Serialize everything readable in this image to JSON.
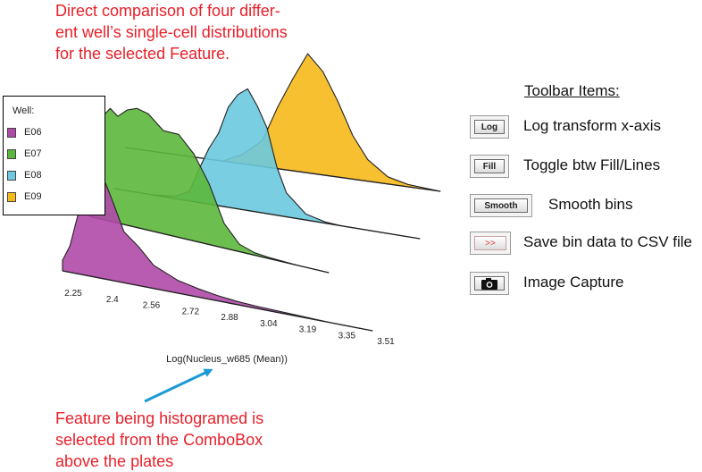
{
  "annotations": {
    "top": [
      "Direct comparison of four differ-",
      "ent well’s single-cell distributions",
      "for the selected Feature."
    ],
    "bottom": [
      "Feature being histogramed is",
      "selected from the ComboBox",
      "above the plates"
    ]
  },
  "legend": {
    "title": "Well:",
    "items": [
      {
        "label": "E06",
        "color": "#b04aa8"
      },
      {
        "label": "E07",
        "color": "#5cb83c"
      },
      {
        "label": "E08",
        "color": "#6cc9df"
      },
      {
        "label": "E09",
        "color": "#f5b91a"
      }
    ]
  },
  "chart_data": {
    "type": "area",
    "xlabel": "Log(Nucleus_w685 (Mean))",
    "x_ticks": [
      "2.25",
      "2.4",
      "2.56",
      "2.72",
      "2.88",
      "3.04",
      "3.19",
      "3.35",
      "3.51"
    ],
    "xlim": [
      2.25,
      3.51
    ],
    "series": [
      {
        "name": "E06",
        "color": "#b04aa8",
        "x": [
          2.25,
          2.28,
          2.31,
          2.34,
          2.37,
          2.4,
          2.43,
          2.46,
          2.5,
          2.56,
          2.62,
          2.72,
          2.8,
          2.88,
          2.96,
          3.04,
          3.19,
          3.35,
          3.51
        ],
        "y": [
          0.1,
          0.25,
          0.55,
          0.78,
          0.93,
          1.0,
          0.9,
          0.7,
          0.5,
          0.35,
          0.22,
          0.12,
          0.08,
          0.05,
          0.03,
          0.02,
          0.01,
          0.0,
          0.0
        ]
      },
      {
        "name": "E07",
        "color": "#5cb83c",
        "x": [
          2.25,
          2.28,
          2.32,
          2.36,
          2.4,
          2.45,
          2.5,
          2.56,
          2.64,
          2.72,
          2.8,
          2.88,
          2.96,
          3.04,
          3.12,
          3.19,
          3.35,
          3.51
        ],
        "y": [
          0.0,
          0.6,
          0.85,
          0.9,
          0.88,
          0.92,
          0.98,
          0.93,
          0.85,
          0.82,
          0.72,
          0.48,
          0.2,
          0.06,
          0.02,
          0.01,
          0.0,
          0.0
        ]
      },
      {
        "name": "E08",
        "color": "#6cc9df",
        "x": [
          2.25,
          2.4,
          2.5,
          2.56,
          2.6,
          2.64,
          2.68,
          2.72,
          2.76,
          2.8,
          2.84,
          2.88,
          2.92,
          2.96,
          3.04,
          3.12,
          3.19,
          3.35,
          3.51
        ],
        "y": [
          0.0,
          0.0,
          0.02,
          0.08,
          0.28,
          0.45,
          0.62,
          0.82,
          0.97,
          1.0,
          0.9,
          0.7,
          0.42,
          0.2,
          0.05,
          0.01,
          0.0,
          0.0,
          0.0
        ]
      },
      {
        "name": "E09",
        "color": "#f5b91a",
        "x": [
          2.25,
          2.5,
          2.64,
          2.72,
          2.8,
          2.86,
          2.92,
          2.98,
          3.04,
          3.1,
          3.16,
          3.22,
          3.3,
          3.38,
          3.51
        ],
        "y": [
          0.0,
          0.0,
          0.0,
          0.08,
          0.22,
          0.5,
          0.78,
          0.98,
          0.88,
          0.62,
          0.38,
          0.18,
          0.06,
          0.02,
          0.0
        ]
      }
    ],
    "legend_position": "left",
    "grid": false
  },
  "toolbar": {
    "heading": "Toolbar Items:",
    "items": [
      {
        "button": "Log",
        "icon": "log-button-icon",
        "description": "Log transform x-axis"
      },
      {
        "button": "Fill",
        "icon": "fill-button-icon",
        "description": "Toggle btw Fill/Lines"
      },
      {
        "button": "Smooth",
        "icon": "smooth-button-icon",
        "description": "Smooth bins"
      },
      {
        "button": ">>",
        "icon": "export-csv-icon",
        "description": "Save bin data to CSV file"
      },
      {
        "button": "",
        "icon": "camera-icon",
        "description": "Image Capture"
      }
    ]
  }
}
